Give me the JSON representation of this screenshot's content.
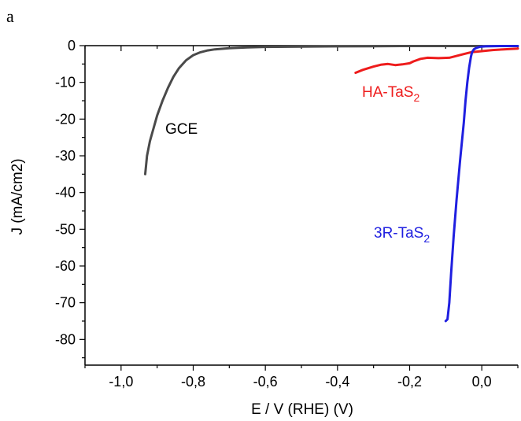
{
  "panel_label": "a",
  "chart_data": {
    "type": "line",
    "xlabel": "E / V (RHE) (V)",
    "ylabel": "J (mA/cm2)",
    "xlim": [
      -1.1,
      0.1
    ],
    "ylim": [
      -87,
      0
    ],
    "x_ticks": [
      "-1,0",
      "-0,8",
      "-0,6",
      "-0,4",
      "-0,2",
      "0,0"
    ],
    "x_tick_values": [
      -1.0,
      -0.8,
      -0.6,
      -0.4,
      -0.2,
      0.0
    ],
    "y_ticks": [
      "0",
      "-10",
      "-20",
      "-30",
      "-40",
      "-50",
      "-60",
      "-70",
      "-80"
    ],
    "y_tick_values": [
      0,
      -10,
      -20,
      -30,
      -40,
      -50,
      -60,
      -70,
      -80
    ],
    "grid": false,
    "series": [
      {
        "label_main": "GCE",
        "label_sub": "",
        "color": "#4a4a4a",
        "x": [
          -0.933,
          -0.928,
          -0.92,
          -0.91,
          -0.9,
          -0.885,
          -0.87,
          -0.855,
          -0.84,
          -0.82,
          -0.8,
          -0.78,
          -0.76,
          -0.74,
          -0.7,
          -0.65,
          -0.6,
          -0.5,
          -0.4,
          -0.3,
          -0.2,
          -0.1,
          0.0
        ],
        "y": [
          -35,
          -30,
          -26,
          -22.5,
          -19,
          -15,
          -11.5,
          -8.5,
          -6.2,
          -4,
          -2.6,
          -1.8,
          -1.3,
          -1.0,
          -0.7,
          -0.5,
          -0.35,
          -0.25,
          -0.2,
          -0.15,
          -0.1,
          -0.1,
          -0.1
        ]
      },
      {
        "label_main": "HA-TaS",
        "label_sub": "2",
        "color": "#ee1c1c",
        "x": [
          -0.35,
          -0.33,
          -0.3,
          -0.28,
          -0.26,
          -0.24,
          -0.22,
          -0.2,
          -0.19,
          -0.17,
          -0.15,
          -0.12,
          -0.09,
          -0.07,
          -0.05,
          -0.03,
          0.0,
          0.03,
          0.06,
          0.1
        ],
        "y": [
          -7.4,
          -6.6,
          -5.7,
          -5.2,
          -5.0,
          -5.3,
          -5.1,
          -4.8,
          -4.3,
          -3.6,
          -3.3,
          -3.4,
          -3.3,
          -2.8,
          -2.3,
          -1.8,
          -1.5,
          -1.2,
          -1.0,
          -0.8
        ]
      },
      {
        "label_main": "3R-TaS",
        "label_sub": "2",
        "color": "#1f1fe0",
        "x": [
          -0.1,
          -0.095,
          -0.09,
          -0.085,
          -0.078,
          -0.07,
          -0.06,
          -0.05,
          -0.045,
          -0.04,
          -0.035,
          -0.03,
          -0.027,
          -0.022,
          -0.015,
          -0.005,
          0.01,
          0.05,
          0.1
        ],
        "y": [
          -75,
          -74.5,
          -70,
          -62,
          -52,
          -42,
          -31,
          -21,
          -15,
          -10,
          -6,
          -3,
          -1.8,
          -1.0,
          -0.6,
          -0.3,
          -0.2,
          -0.1,
          -0.1
        ]
      }
    ]
  }
}
